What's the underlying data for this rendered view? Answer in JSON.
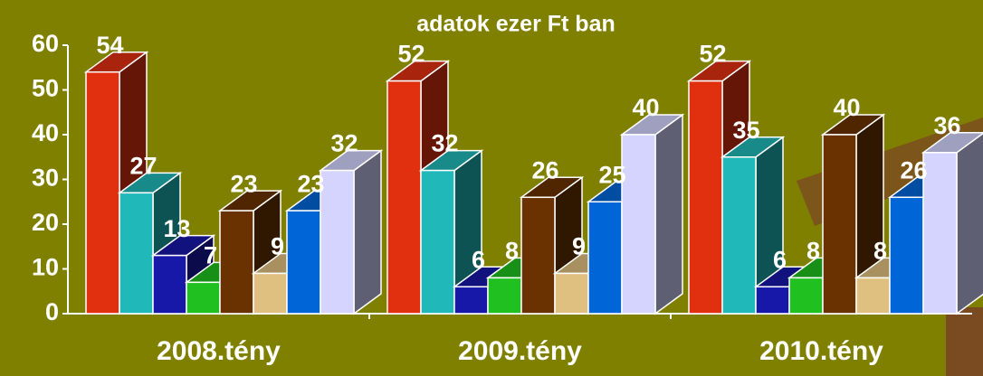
{
  "chart_data": {
    "type": "bar3d",
    "title": "adatok ezer Ft ban",
    "categories": [
      "2008.tény",
      "2009.tény",
      "2010.tény"
    ],
    "series": [
      {
        "color": "#e03010",
        "values": [
          54,
          52,
          52
        ]
      },
      {
        "color": "#20b8b8",
        "values": [
          27,
          32,
          35
        ]
      },
      {
        "color": "#1818a8",
        "values": [
          13,
          6,
          6
        ]
      },
      {
        "color": "#20c020",
        "values": [
          7,
          8,
          8
        ]
      },
      {
        "color": "#6a3200",
        "values": [
          23,
          26,
          40
        ]
      },
      {
        "color": "#e0c080",
        "values": [
          9,
          9,
          8
        ]
      },
      {
        "color": "#0066d8",
        "values": [
          23,
          25,
          26
        ]
      },
      {
        "color": "#d4d4ff",
        "values": [
          32,
          40,
          36
        ]
      }
    ],
    "ylim": [
      0,
      60
    ],
    "yticks": [
      0,
      10,
      20,
      30,
      40,
      50,
      60
    ]
  }
}
